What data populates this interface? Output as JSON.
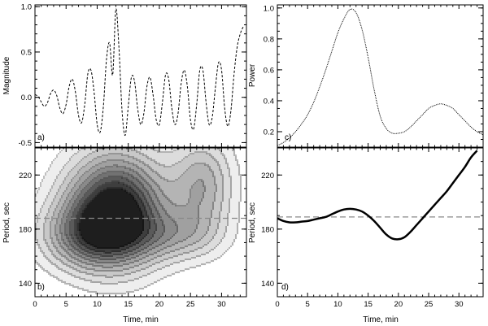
{
  "chart_data": [
    {
      "panel": "a",
      "type": "line",
      "panel_label": "a)",
      "ylabel": "Magnitude",
      "xlabel": "",
      "xlim": [
        0,
        34
      ],
      "ylim": [
        -0.55,
        1.02
      ],
      "x_ticks": [
        0,
        5,
        10,
        15,
        20,
        25,
        30
      ],
      "y_ticks": [
        -0.5,
        0.0,
        0.5,
        1.0
      ],
      "y_tick_labels": [
        "-0.5",
        "0.0",
        "0.5",
        "1.0"
      ],
      "line_style": "dashed",
      "series": [
        {
          "x": [
            0,
            0.5,
            1,
            1.5,
            2,
            2.5,
            3,
            3.5,
            4,
            4.5,
            5,
            5.5,
            6,
            6.5,
            7,
            7.5,
            8,
            8.5,
            9,
            9.5,
            10,
            10.5,
            11,
            11.5,
            12,
            12.5,
            13,
            13.5,
            14,
            14.5,
            15,
            15.5,
            16,
            16.5,
            17,
            17.5,
            18,
            18.5,
            19,
            19.5,
            20,
            20.5,
            21,
            21.5,
            22,
            22.5,
            23,
            23.5,
            24,
            24.5,
            25,
            25.5,
            26,
            26.5,
            27,
            27.5,
            28,
            28.5,
            29,
            29.5,
            30,
            30.5,
            31,
            31.5,
            32,
            32.5,
            33,
            33.5
          ],
          "y": [
            0.03,
            0.01,
            -0.05,
            -0.1,
            -0.06,
            0.04,
            0.08,
            0.02,
            -0.12,
            -0.18,
            -0.08,
            0.12,
            0.2,
            0.06,
            -0.2,
            -0.28,
            -0.08,
            0.26,
            0.3,
            0.06,
            -0.3,
            -0.38,
            -0.1,
            0.42,
            0.6,
            0.25,
            0.97,
            0.55,
            -0.15,
            -0.42,
            -0.1,
            0.22,
            0.18,
            -0.12,
            -0.3,
            -0.18,
            0.12,
            0.22,
            0.02,
            -0.25,
            -0.3,
            -0.05,
            0.25,
            0.2,
            -0.12,
            -0.3,
            -0.18,
            0.15,
            0.3,
            0.12,
            -0.25,
            -0.35,
            -0.08,
            0.3,
            0.3,
            -0.05,
            -0.3,
            -0.22,
            0.1,
            0.38,
            0.3,
            -0.12,
            -0.32,
            -0.15,
            0.25,
            0.55,
            0.7,
            0.78
          ]
        }
      ]
    },
    {
      "panel": "b",
      "type": "heatmap",
      "panel_label": "b)",
      "ylabel": "Period, sec",
      "xlabel": "Time, min",
      "xlim": [
        0,
        34
      ],
      "ylim": [
        130,
        240
      ],
      "x_ticks": [
        0,
        5,
        10,
        15,
        20,
        25,
        30
      ],
      "y_ticks": [
        140,
        180,
        220
      ],
      "reference_line": 188,
      "blobs": [
        {
          "cx": 13,
          "cy": 195,
          "sx": 5.5,
          "sy": 28,
          "amp": 1.0
        },
        {
          "cx": 9,
          "cy": 175,
          "sx": 5.5,
          "sy": 17,
          "amp": 0.45
        },
        {
          "cx": 27,
          "cy": 212,
          "sx": 3.5,
          "sy": 25,
          "amp": 0.42
        },
        {
          "cx": 23,
          "cy": 175,
          "sx": 5.0,
          "sy": 13,
          "amp": 0.28
        }
      ],
      "levels": [
        0.09,
        0.18,
        0.27,
        0.36,
        0.45,
        0.54,
        0.63,
        0.72,
        0.81,
        0.9
      ]
    },
    {
      "panel": "c",
      "type": "line",
      "panel_label": "c)",
      "ylabel": "Power",
      "xlabel": "",
      "xlim": [
        0,
        34
      ],
      "ylim": [
        0.1,
        1.02
      ],
      "x_ticks": [
        0,
        5,
        10,
        15,
        20,
        25,
        30
      ],
      "y_ticks": [
        0.2,
        0.4,
        0.6,
        0.8,
        1.0
      ],
      "y_tick_labels": [
        "0.2",
        "0.4",
        "0.6",
        "0.8",
        "1.0"
      ],
      "line_style": "dotted",
      "series": [
        {
          "x": [
            0,
            1,
            2,
            3,
            4,
            5,
            6,
            7,
            8,
            9,
            10,
            11,
            12,
            13,
            14,
            15,
            16,
            17,
            18,
            19,
            20,
            21,
            22,
            23,
            24,
            25,
            26,
            27,
            28,
            29,
            30,
            31,
            32,
            33,
            34
          ],
          "y": [
            0.11,
            0.13,
            0.16,
            0.2,
            0.25,
            0.31,
            0.39,
            0.49,
            0.6,
            0.72,
            0.84,
            0.93,
            0.99,
            0.97,
            0.86,
            0.68,
            0.47,
            0.3,
            0.22,
            0.19,
            0.19,
            0.2,
            0.23,
            0.27,
            0.31,
            0.35,
            0.37,
            0.38,
            0.37,
            0.35,
            0.31,
            0.27,
            0.23,
            0.2,
            0.18
          ]
        }
      ]
    },
    {
      "panel": "d",
      "type": "line",
      "panel_label": "d)",
      "ylabel": "Period, sec",
      "xlabel": "Time, min",
      "xlim": [
        0,
        34
      ],
      "ylim": [
        130,
        240
      ],
      "x_ticks": [
        0,
        5,
        10,
        15,
        20,
        25,
        30
      ],
      "y_ticks": [
        140,
        180,
        220
      ],
      "reference_line": 189,
      "line_style": "solid-thick",
      "series": [
        {
          "x": [
            0,
            1,
            2,
            3,
            4,
            5,
            6,
            7,
            8,
            9,
            10,
            11,
            12,
            13,
            14,
            15,
            16,
            17,
            18,
            19,
            20,
            21,
            22,
            23,
            24,
            25,
            26,
            27,
            28,
            29,
            30,
            31,
            32,
            33
          ],
          "y": [
            188,
            186,
            185,
            185,
            185.5,
            186,
            187,
            188,
            189,
            191,
            193,
            194.5,
            195,
            194.5,
            193,
            190,
            186,
            181,
            176,
            173,
            172.5,
            174,
            178,
            183,
            188,
            193,
            198,
            203,
            208,
            214,
            220,
            226,
            233,
            238
          ]
        }
      ]
    }
  ]
}
